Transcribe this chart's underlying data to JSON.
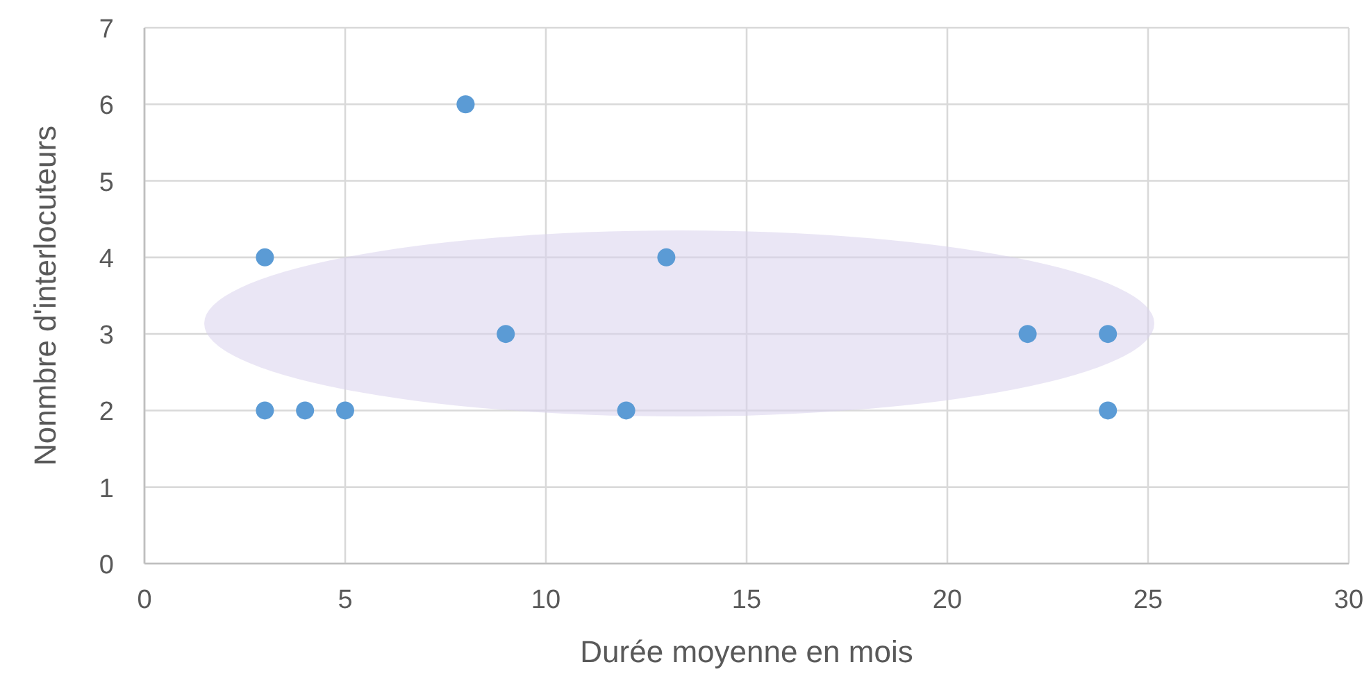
{
  "chart_data": {
    "type": "scatter",
    "xlabel": "Durée moyenne en mois",
    "ylabel": "Nonmbre d'interlocuteurs",
    "x": [
      3,
      3,
      4,
      5,
      8,
      9,
      12,
      13,
      22,
      24,
      24
    ],
    "values": [
      4,
      2,
      2,
      2,
      6,
      3,
      2,
      4,
      3,
      3,
      2
    ],
    "color": "#5b9bd5",
    "marker": "circle",
    "xlim": [
      0,
      30
    ],
    "xticks": [
      0,
      5,
      10,
      15,
      20,
      25,
      30
    ],
    "ylim": [
      0,
      7
    ],
    "yticks": [
      0,
      1,
      2,
      3,
      4,
      5,
      6,
      7
    ],
    "grid": true
  }
}
